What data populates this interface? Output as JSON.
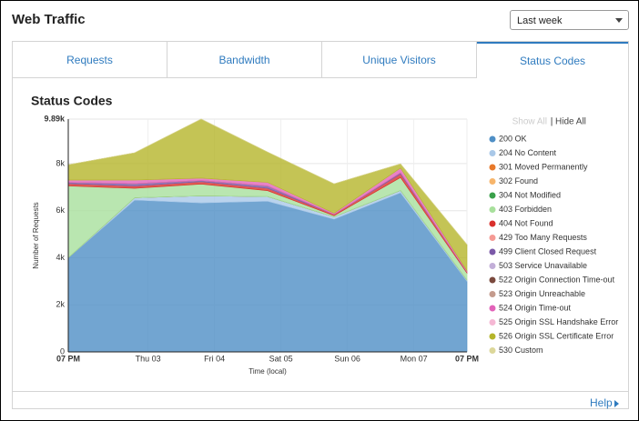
{
  "header": {
    "title": "Web Traffic",
    "range_select": "Last week"
  },
  "tabs": [
    "Requests",
    "Bandwidth",
    "Unique Visitors",
    "Status Codes"
  ],
  "active_tab": 3,
  "legend_controls": {
    "show_all": "Show All",
    "separator": "|",
    "hide_all": "Hide All"
  },
  "help": "Help",
  "chart_data": {
    "type": "stacked-area",
    "title": "Status Codes",
    "y_label": "Number of Requests",
    "x_label": "Time (local)",
    "x": [
      0,
      1,
      2,
      3,
      4,
      5,
      6
    ],
    "xlim": [
      0,
      6
    ],
    "xticks": [
      {
        "value": 0,
        "label": "07 PM"
      },
      {
        "value": 1.2,
        "label": "Thu 03"
      },
      {
        "value": 2.2,
        "label": "Fri 04"
      },
      {
        "value": 3.2,
        "label": "Sat 05"
      },
      {
        "value": 4.2,
        "label": "Sun 06"
      },
      {
        "value": 5.2,
        "label": "Mon 07"
      },
      {
        "value": 6,
        "label": "07 PM"
      }
    ],
    "ylim": [
      0,
      9890
    ],
    "yticks": [
      0,
      {
        "value": 2000,
        "label": "2k"
      },
      {
        "value": 4000,
        "label": "4k"
      },
      {
        "value": 6000,
        "label": "6k"
      },
      {
        "value": 8000,
        "label": "8k"
      },
      {
        "value": 9890,
        "label": "9.89k"
      }
    ],
    "grid": true,
    "series": [
      {
        "name": "200 OK",
        "color": "#4f8fc6",
        "values": [
          4000,
          6450,
          6330,
          6400,
          5640,
          6760,
          3000
        ]
      },
      {
        "name": "204 No Content",
        "color": "#a9c8e8",
        "values": [
          0,
          100,
          300,
          200,
          100,
          100,
          50
        ]
      },
      {
        "name": "301 Moved Permanently",
        "color": "#e8792a",
        "values": [
          0,
          0,
          0,
          0,
          0,
          0,
          0
        ]
      },
      {
        "name": "302 Found",
        "color": "#f7b56b",
        "values": [
          0,
          0,
          0,
          0,
          0,
          0,
          0
        ]
      },
      {
        "name": "304 Not Modified",
        "color": "#3aa04a",
        "values": [
          0,
          0,
          0,
          0,
          0,
          0,
          0
        ]
      },
      {
        "name": "403 Forbidden",
        "color": "#a8e09c",
        "values": [
          3050,
          400,
          500,
          250,
          50,
          550,
          300
        ]
      },
      {
        "name": "404 Not Found",
        "color": "#d9302c",
        "values": [
          100,
          100,
          100,
          100,
          50,
          150,
          50
        ]
      },
      {
        "name": "429 Too Many Requests",
        "color": "#f59a94",
        "values": [
          0,
          0,
          0,
          0,
          0,
          0,
          0
        ]
      },
      {
        "name": "499 Client Closed Request",
        "color": "#7b59a8",
        "values": [
          50,
          100,
          50,
          100,
          0,
          50,
          0
        ]
      },
      {
        "name": "503 Service Unavailable",
        "color": "#c2aed8",
        "values": [
          0,
          0,
          0,
          0,
          0,
          0,
          0
        ]
      },
      {
        "name": "522 Origin Connection Time-out",
        "color": "#7b4a3e",
        "values": [
          0,
          0,
          0,
          0,
          0,
          0,
          0
        ]
      },
      {
        "name": "523 Origin Unreachable",
        "color": "#c49b8d",
        "values": [
          0,
          0,
          0,
          0,
          0,
          0,
          0
        ]
      },
      {
        "name": "524 Origin Time-out",
        "color": "#e263b9",
        "values": [
          100,
          150,
          100,
          150,
          50,
          200,
          50
        ]
      },
      {
        "name": "525 Origin SSL Handshake Error",
        "color": "#f5b8d4",
        "values": [
          0,
          0,
          0,
          0,
          0,
          0,
          0
        ]
      },
      {
        "name": "526 Origin SSL Certificate Error",
        "color": "#b5b52a",
        "values": [
          650,
          1160,
          2510,
          1290,
          1250,
          180,
          1110
        ]
      },
      {
        "name": "530 Custom",
        "color": "#dcd79a",
        "values": [
          0,
          0,
          0,
          0,
          0,
          0,
          0
        ]
      }
    ]
  }
}
